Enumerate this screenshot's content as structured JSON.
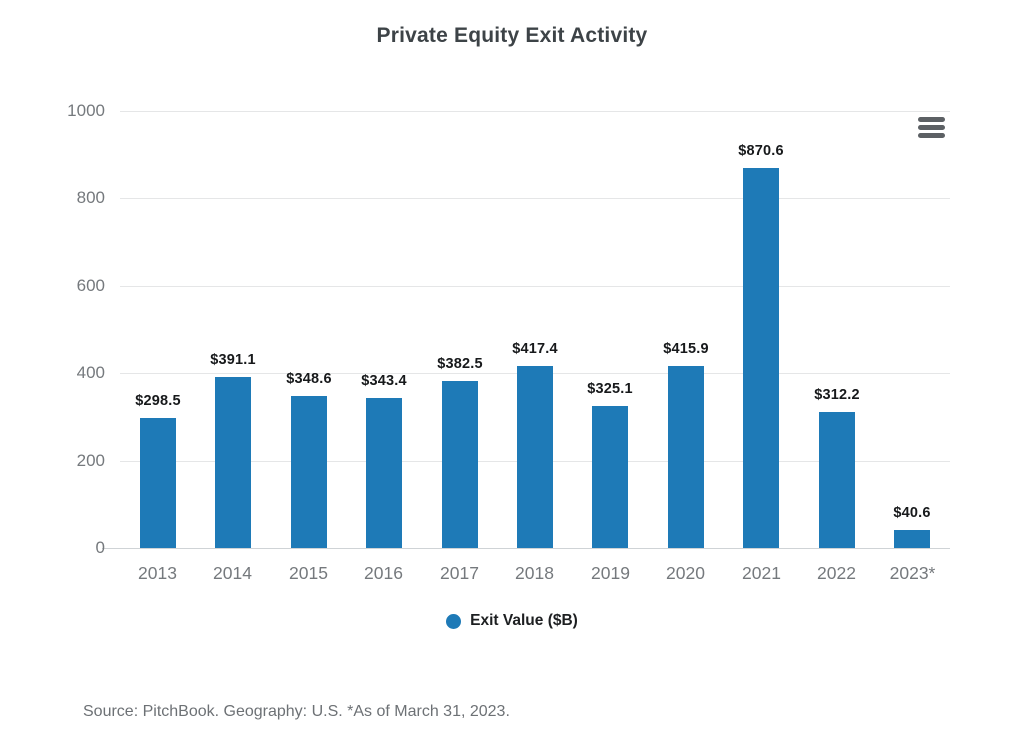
{
  "chart_data": {
    "type": "bar",
    "title": "Private Equity Exit Activity",
    "categories": [
      "2013",
      "2014",
      "2015",
      "2016",
      "2017",
      "2018",
      "2019",
      "2020",
      "2021",
      "2022",
      "2023*"
    ],
    "values": [
      298.5,
      391.1,
      348.6,
      343.4,
      382.5,
      417.4,
      325.1,
      415.9,
      870.6,
      312.2,
      40.6
    ],
    "value_labels": [
      "$298.5",
      "$391.1",
      "$348.6",
      "$343.4",
      "$382.5",
      "$417.4",
      "$325.1",
      "$415.9",
      "$870.6",
      "$312.2",
      "$40.6"
    ],
    "series_name": "Exit Value ($B)",
    "ylim": [
      0,
      1000
    ],
    "yticks": [
      0,
      200,
      400,
      600,
      800,
      1000
    ],
    "grid": "horizontal",
    "legend_position": "bottom",
    "bar_color": "#1e7ab7",
    "source": "Source: PitchBook. Geography: U.S. *As of March 31, 2023."
  },
  "icons": {
    "menu_icon": "hamburger-menu"
  },
  "colors": {
    "bar": "#1e7ab7",
    "title_text": "#3d4347",
    "axis_text": "#75797d",
    "value_label_text": "#17191b",
    "gridline": "#e5e6e7",
    "baseline": "#cfd3d6",
    "source_text": "#6d7175",
    "menu_icon": "#5c6064",
    "background": "#ffffff"
  }
}
